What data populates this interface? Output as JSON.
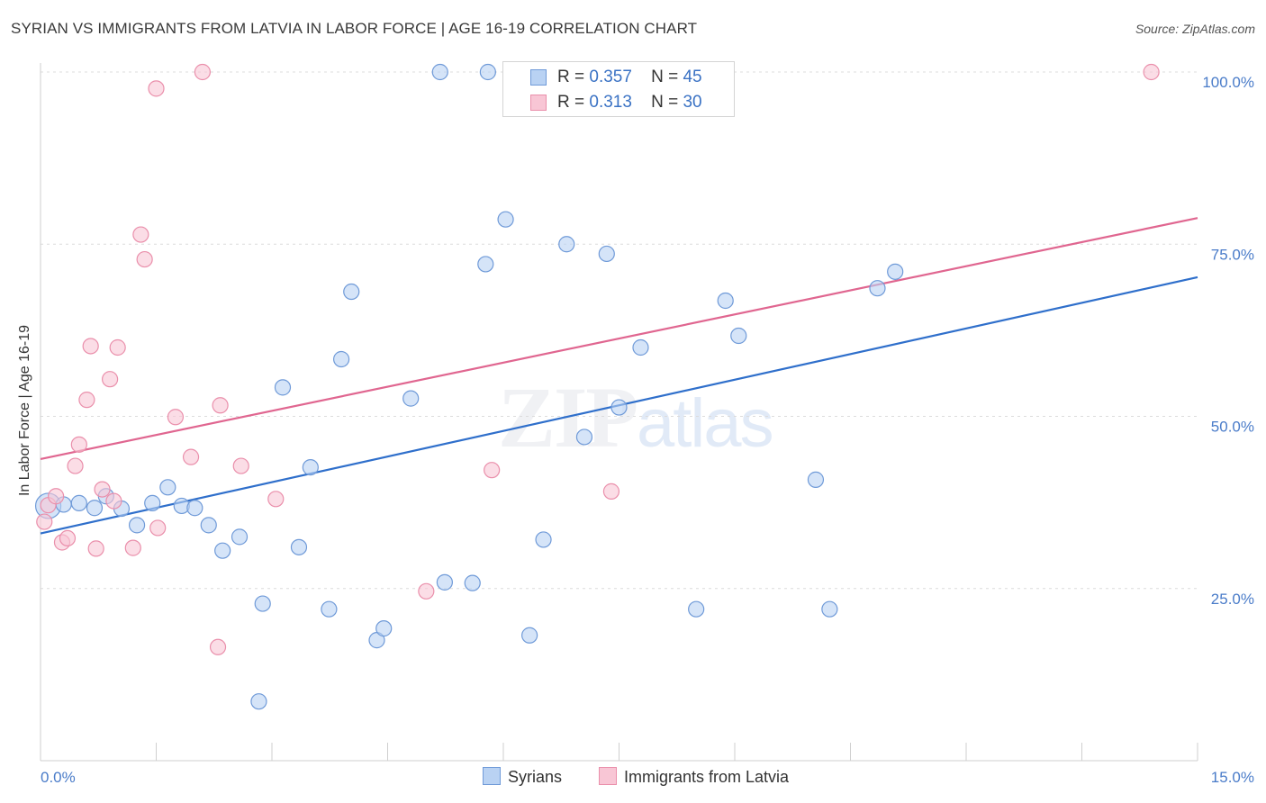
{
  "title": "SYRIAN VS IMMIGRANTS FROM LATVIA IN LABOR FORCE | AGE 16-19 CORRELATION CHART",
  "source": "Source: ZipAtlas.com",
  "watermark": {
    "zip": "ZIP",
    "atlas": "atlas"
  },
  "legend": {
    "rows": [
      {
        "r_label": "R =",
        "r_value": "0.357",
        "n_label": "N =",
        "n_value": "45"
      },
      {
        "r_label": "R =",
        "r_value": "0.313",
        "n_label": "N =",
        "n_value": "30"
      }
    ]
  },
  "colors": {
    "blue_fill": "#b9d2f3",
    "blue_stroke": "#6f9ad8",
    "blue_line": "#2f6fcb",
    "pink_fill": "#f8c6d5",
    "pink_stroke": "#ea8fab",
    "pink_line": "#e06690"
  },
  "chart_data": {
    "type": "scatter",
    "title": "SYRIAN VS IMMIGRANTS FROM LATVIA IN LABOR FORCE | AGE 16-19 CORRELATION CHART",
    "xlabel": "",
    "ylabel": "In Labor Force | Age 16-19",
    "xlim": [
      0,
      15
    ],
    "ylim": [
      0,
      102
    ],
    "x_tick_labels": [
      "0.0%",
      "15.0%"
    ],
    "y_ticks": [
      25,
      50,
      75,
      100
    ],
    "y_tick_labels": [
      "25.0%",
      "50.0%",
      "75.0%",
      "100.0%"
    ],
    "grid": true,
    "legend_position": "top-center",
    "series": [
      {
        "name": "Syrians",
        "color": "#6f9ad8",
        "trend": {
          "x": [
            0,
            15
          ],
          "y": [
            33.0,
            70.2
          ]
        },
        "points": [
          [
            0.1,
            37.0
          ],
          [
            0.3,
            37.2
          ],
          [
            0.5,
            37.4
          ],
          [
            0.7,
            36.7
          ],
          [
            0.85,
            38.4
          ],
          [
            1.05,
            36.6
          ],
          [
            1.25,
            34.2
          ],
          [
            1.45,
            37.4
          ],
          [
            1.65,
            39.7
          ],
          [
            1.83,
            37.0
          ],
          [
            2.0,
            36.7
          ],
          [
            2.18,
            34.2
          ],
          [
            2.36,
            30.5
          ],
          [
            2.58,
            32.5
          ],
          [
            2.83,
            8.6
          ],
          [
            2.88,
            22.8
          ],
          [
            3.14,
            54.2
          ],
          [
            3.35,
            31.0
          ],
          [
            3.5,
            42.6
          ],
          [
            3.74,
            22.0
          ],
          [
            3.9,
            58.3
          ],
          [
            4.03,
            68.1
          ],
          [
            4.36,
            17.5
          ],
          [
            4.45,
            19.2
          ],
          [
            4.8,
            52.6
          ],
          [
            5.18,
            100.0
          ],
          [
            5.24,
            25.9
          ],
          [
            5.6,
            25.8
          ],
          [
            5.77,
            72.1
          ],
          [
            5.8,
            100.0
          ],
          [
            6.03,
            78.6
          ],
          [
            6.34,
            18.2
          ],
          [
            6.52,
            32.1
          ],
          [
            6.82,
            75.0
          ],
          [
            7.05,
            47.0
          ],
          [
            7.34,
            73.6
          ],
          [
            7.5,
            51.3
          ],
          [
            7.78,
            60.0
          ],
          [
            8.5,
            22.0
          ],
          [
            8.88,
            66.8
          ],
          [
            9.05,
            61.7
          ],
          [
            10.05,
            40.8
          ],
          [
            10.23,
            22.0
          ],
          [
            10.85,
            68.6
          ],
          [
            11.08,
            71.0
          ]
        ]
      },
      {
        "name": "Immigrants from Latvia",
        "color": "#ea8fab",
        "trend": {
          "x": [
            0,
            15
          ],
          "y": [
            43.8,
            78.8
          ]
        },
        "points": [
          [
            0.05,
            34.7
          ],
          [
            0.1,
            37.1
          ],
          [
            0.2,
            38.4
          ],
          [
            0.28,
            31.7
          ],
          [
            0.35,
            32.3
          ],
          [
            0.45,
            42.8
          ],
          [
            0.5,
            45.9
          ],
          [
            0.6,
            52.4
          ],
          [
            0.65,
            60.2
          ],
          [
            0.72,
            30.8
          ],
          [
            0.8,
            39.4
          ],
          [
            0.9,
            55.4
          ],
          [
            0.95,
            37.7
          ],
          [
            1.0,
            60.0
          ],
          [
            1.2,
            30.9
          ],
          [
            1.3,
            76.4
          ],
          [
            1.35,
            72.8
          ],
          [
            1.5,
            97.6
          ],
          [
            1.52,
            33.8
          ],
          [
            1.75,
            49.9
          ],
          [
            1.95,
            44.1
          ],
          [
            2.1,
            100.0
          ],
          [
            2.3,
            16.5
          ],
          [
            2.33,
            51.6
          ],
          [
            2.6,
            42.8
          ],
          [
            3.05,
            38.0
          ],
          [
            5.0,
            24.6
          ],
          [
            5.85,
            42.2
          ],
          [
            7.4,
            39.1
          ],
          [
            14.4,
            100.0
          ]
        ]
      }
    ]
  }
}
